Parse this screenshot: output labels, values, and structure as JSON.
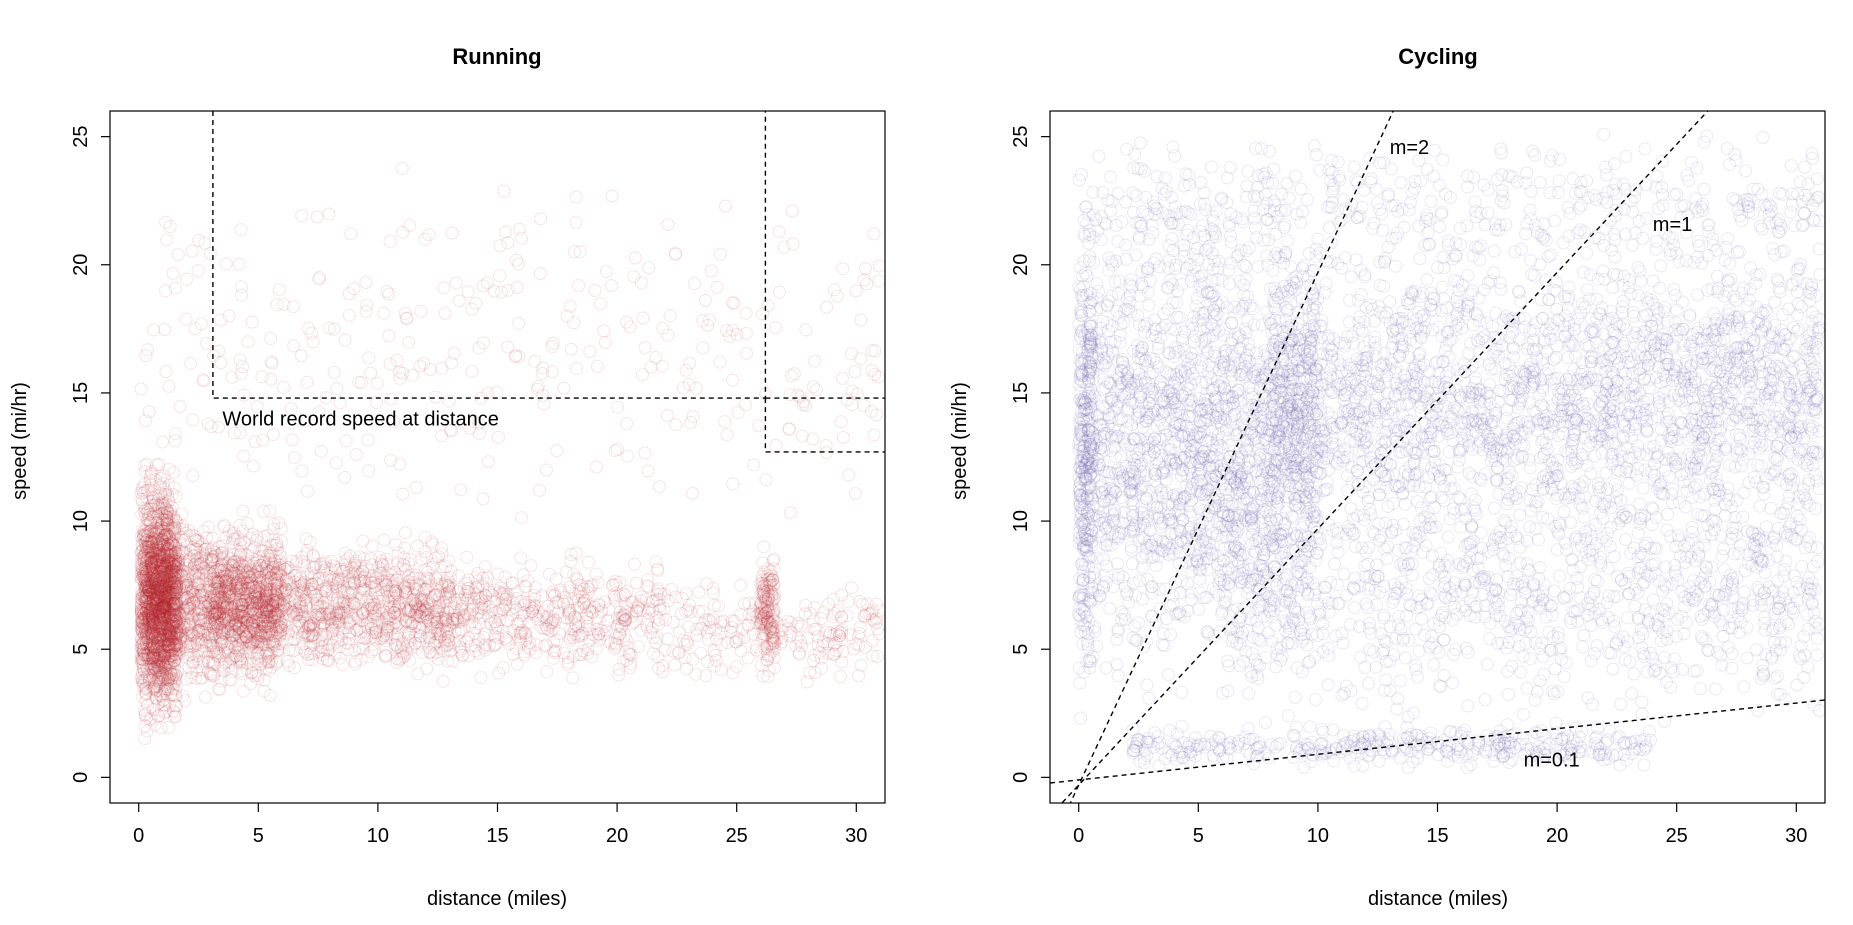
{
  "chart_data": [
    {
      "type": "scatter",
      "title": "Running",
      "xlabel": "distance (miles)",
      "ylabel": "speed (mi/hr)",
      "xlim": [
        -1.2,
        31.2
      ],
      "ylim": [
        -1.0,
        26.0
      ],
      "xticks": [
        0,
        5,
        10,
        15,
        20,
        25,
        30
      ],
      "yticks": [
        0,
        5,
        10,
        15,
        20,
        25
      ],
      "point_color": "#b2222a",
      "point_opacity": 0.12,
      "grid": false,
      "legend": "none",
      "reference_lines": [
        {
          "name": "world-record-segment-1",
          "points": [
            [
              3.1,
              26.0
            ],
            [
              3.1,
              14.8
            ],
            [
              26.2,
              14.8
            ],
            [
              26.2,
              26.0
            ]
          ]
        },
        {
          "name": "world-record-segment-2",
          "points": [
            [
              26.2,
              14.8
            ],
            [
              31.2,
              14.8
            ]
          ]
        },
        {
          "name": "world-record-segment-3",
          "points": [
            [
              26.2,
              14.8
            ],
            [
              26.2,
              12.7
            ],
            [
              31.2,
              12.7
            ]
          ]
        }
      ],
      "annotations": [
        {
          "text": "World record speed at distance",
          "x": 3.5,
          "y": 14.0
        }
      ],
      "clusters": [
        {
          "x": [
            0.1,
            1.6
          ],
          "y": [
            1.0,
            13.0
          ],
          "weight": 0.3
        },
        {
          "x": [
            0.5,
            6.0
          ],
          "y": [
            2.5,
            11.0
          ],
          "weight": 0.24
        },
        {
          "x": [
            3.0,
            13.0
          ],
          "y": [
            3.5,
            10.0
          ],
          "weight": 0.22
        },
        {
          "x": [
            12.0,
            22.0
          ],
          "y": [
            3.5,
            9.0
          ],
          "weight": 0.1
        },
        {
          "x": [
            22.0,
            31.0
          ],
          "y": [
            3.5,
            8.0
          ],
          "weight": 0.04
        },
        {
          "x": [
            26.0,
            26.6
          ],
          "y": [
            3.5,
            9.3
          ],
          "weight": 0.03
        },
        {
          "x": [
            0.0,
            31.0
          ],
          "y": [
            8.0,
            25.0
          ],
          "weight": 0.07
        }
      ]
    },
    {
      "type": "scatter",
      "title": "Cycling",
      "xlabel": "distance (miles)",
      "ylabel": "speed (mi/hr)",
      "xlim": [
        -1.2,
        31.2
      ],
      "ylim": [
        -1.0,
        26.0
      ],
      "xticks": [
        0,
        5,
        10,
        15,
        20,
        25,
        30
      ],
      "yticks": [
        0,
        5,
        10,
        15,
        20,
        25
      ],
      "point_color": "#6a5aaa",
      "point_opacity": 0.14,
      "grid": false,
      "legend": "none",
      "reference_lines": [
        {
          "name": "slope-m2",
          "intercept": -0.3,
          "slope": 2
        },
        {
          "name": "slope-m1",
          "intercept": -0.3,
          "slope": 1
        },
        {
          "name": "slope-m0.1",
          "intercept": -0.1,
          "slope": 0.1
        }
      ],
      "annotations": [
        {
          "text": "m=2",
          "x": 13.0,
          "y": 24.6
        },
        {
          "text": "m=1",
          "x": 24.0,
          "y": 21.6
        },
        {
          "text": "m=0.1",
          "x": 18.6,
          "y": 0.7
        }
      ],
      "clusters": [
        {
          "x": [
            0.0,
            10.0
          ],
          "y": [
            2.0,
            24.0
          ],
          "weight": 0.3
        },
        {
          "x": [
            8.0,
            31.0
          ],
          "y": [
            8.0,
            22.0
          ],
          "weight": 0.34
        },
        {
          "x": [
            6.0,
            31.0
          ],
          "y": [
            1.0,
            14.0
          ],
          "weight": 0.18
        },
        {
          "x": [
            0.0,
            31.0
          ],
          "y": [
            18.0,
            26.0
          ],
          "weight": 0.08
        },
        {
          "x": [
            2.0,
            24.0
          ],
          "y": [
            0.2,
            2.2
          ],
          "weight": 0.06
        },
        {
          "x": [
            0.0,
            0.6
          ],
          "y": [
            0.0,
            25.0
          ],
          "weight": 0.04
        }
      ]
    }
  ]
}
